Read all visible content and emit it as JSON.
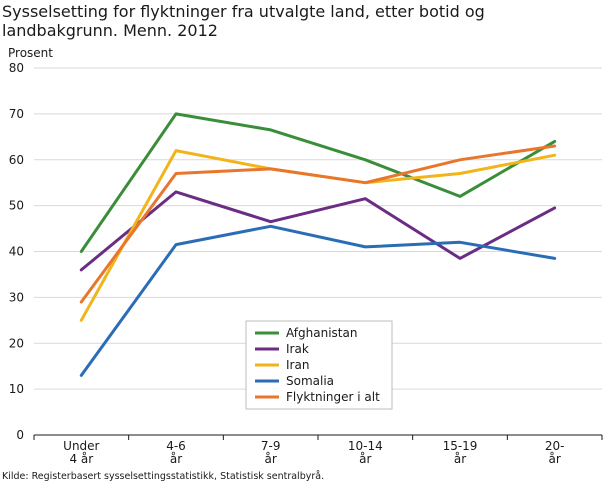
{
  "chart_data": {
    "type": "line",
    "title": "Sysselsetting for flyktninger fra utvalgte land, etter botid og landbakgrunn. Menn. 2012",
    "ylabel": "Prosent",
    "ylim": [
      0,
      80
    ],
    "yticks": [
      0,
      10,
      20,
      30,
      40,
      50,
      60,
      70,
      80
    ],
    "grid": "horizontal",
    "legend_placement": "bottom-center",
    "categories": [
      {
        "line1": "Under",
        "line2": "4 år"
      },
      {
        "line1": "4-6",
        "line2": "år"
      },
      {
        "line1": "7-9",
        "line2": "år"
      },
      {
        "line1": "10-14",
        "line2": "år"
      },
      {
        "line1": "15-19",
        "line2": "år"
      },
      {
        "line1": "20-",
        "line2": "år"
      }
    ],
    "series": [
      {
        "name": "Afghanistan",
        "color": "#3a8e3a",
        "values": [
          40,
          70,
          66.5,
          60,
          52,
          64
        ]
      },
      {
        "name": "Irak",
        "color": "#6b2c84",
        "values": [
          36,
          53,
          46.5,
          51.5,
          38.5,
          49.5
        ]
      },
      {
        "name": "Iran",
        "color": "#f2b41b",
        "values": [
          25,
          62,
          58,
          55,
          57,
          61
        ]
      },
      {
        "name": "Somalia",
        "color": "#2a6db5",
        "values": [
          13,
          41.5,
          45.5,
          41,
          42,
          38.5
        ]
      },
      {
        "name": "Flyktninger i alt",
        "color": "#e8762c",
        "values": [
          29,
          57,
          58,
          55,
          60,
          63
        ]
      }
    ]
  },
  "source": "Kilde: Registerbasert sysselsettingsstatistikk, Statistisk sentralbyrå."
}
